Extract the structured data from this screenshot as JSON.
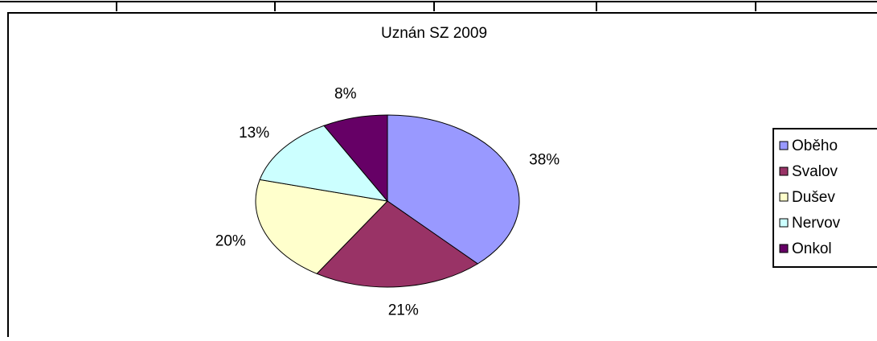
{
  "chart_data": {
    "type": "pie",
    "title": "Uznán SZ 2009",
    "categories": [
      "Oběho",
      "Svalov",
      "Dušev",
      "Nervov",
      "Onkol"
    ],
    "values": [
      38,
      21,
      20,
      13,
      8
    ],
    "value_labels": [
      "38%",
      "21%",
      "20%",
      "13%",
      "8%"
    ],
    "colors": [
      "#9999ff",
      "#993366",
      "#ffffcc",
      "#ccffff",
      "#660066"
    ],
    "legend": "right"
  }
}
